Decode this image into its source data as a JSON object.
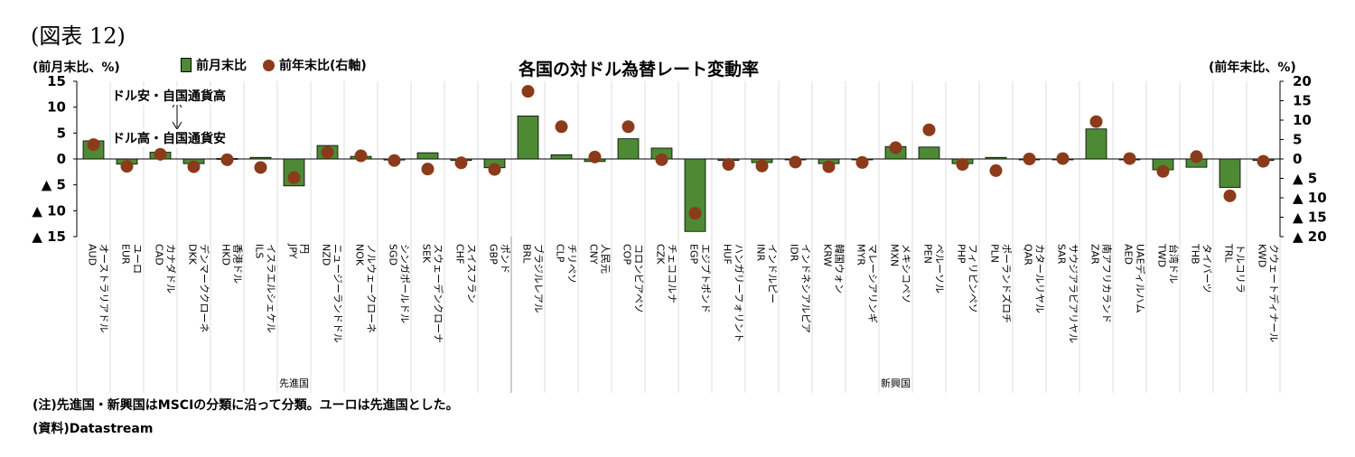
{
  "figure_label": "(図表 12)",
  "chart_data": {
    "type": "bar",
    "title": "各国の対ドル為替レート変動率",
    "ylabel_left": "(前月末比、%)",
    "ylabel_right": "(前年末比、%)",
    "legend_position": "top-left",
    "left_axis": {
      "ylim": [
        -15,
        15
      ],
      "ticks": [
        "15",
        "10",
        "5",
        "0",
        "▲ 5",
        "▲ 10",
        "▲ 15"
      ]
    },
    "right_axis": {
      "ylim": [
        -20,
        20
      ],
      "ticks": [
        "20",
        "15",
        "10",
        "5",
        "0",
        "▲ 5",
        "▲ 10",
        "▲ 15",
        "▲ 20"
      ]
    },
    "grid": false,
    "categories": [
      {
        "code": "AUD",
        "name": "オーストラリアドル"
      },
      {
        "code": "EUR",
        "name": "ユーロ"
      },
      {
        "code": "CAD",
        "name": "カナダドル"
      },
      {
        "code": "DKK",
        "name": "デンマーククローネ"
      },
      {
        "code": "HKD",
        "name": "香港ドル"
      },
      {
        "code": "ILS",
        "name": "イスラエルシェケル"
      },
      {
        "code": "JPY",
        "name": "円"
      },
      {
        "code": "NZD",
        "name": "ニュージーランドドル"
      },
      {
        "code": "NOK",
        "name": "ノルウェークローネ"
      },
      {
        "code": "SGD",
        "name": "シンガポールドル"
      },
      {
        "code": "SEK",
        "name": "スウェーデンクローナ"
      },
      {
        "code": "CHF",
        "name": "スイスフラン"
      },
      {
        "code": "GBP",
        "name": "ポンド"
      },
      {
        "code": "BRL",
        "name": "ブラジルレアル"
      },
      {
        "code": "CLP",
        "name": "チリペソ"
      },
      {
        "code": "CNY",
        "name": "人民元"
      },
      {
        "code": "COP",
        "name": "コロンビアペソ"
      },
      {
        "code": "CZK",
        "name": "チェココルナ"
      },
      {
        "code": "EGP",
        "name": "エジプトポンド"
      },
      {
        "code": "HUF",
        "name": "ハンガリーフォリント"
      },
      {
        "code": "INR",
        "name": "インドルピー"
      },
      {
        "code": "IDR",
        "name": "インドネシアルピア"
      },
      {
        "code": "KRW",
        "name": "韓国ウォン"
      },
      {
        "code": "MYR",
        "name": "マレーシアリンギ"
      },
      {
        "code": "MXN",
        "name": "メキシコペソ"
      },
      {
        "code": "PEN",
        "name": "ペルーソル"
      },
      {
        "code": "PHP",
        "name": "フィリピンペソ"
      },
      {
        "code": "PLN",
        "name": "ポーランドズロチ"
      },
      {
        "code": "QAR",
        "name": "カタールリヤル"
      },
      {
        "code": "SAR",
        "name": "サウジアラビアリヤル"
      },
      {
        "code": "ZAR",
        "name": "南アフリカランド"
      },
      {
        "code": "AED",
        "name": "UAEディルハム"
      },
      {
        "code": "TWD",
        "name": "台湾ドル"
      },
      {
        "code": "THB",
        "name": "タイバーツ"
      },
      {
        "code": "TRL",
        "name": "トルコリラ"
      },
      {
        "code": "KWD",
        "name": "クウェートディナール"
      }
    ],
    "groups": [
      {
        "label": "先進国",
        "count": 13
      },
      {
        "label": "新興国",
        "count": 23
      }
    ],
    "series": [
      {
        "name": "前月末比",
        "kind": "bar",
        "axis": "left",
        "color": "#4e8a34",
        "values": [
          3.5,
          -1.0,
          1.3,
          -0.9,
          0.1,
          0.3,
          -5.2,
          2.6,
          0.5,
          -0.2,
          1.2,
          -0.3,
          -1.7,
          8.3,
          0.8,
          -0.5,
          3.9,
          2.1,
          -14.0,
          -0.3,
          -0.7,
          0.0,
          -0.9,
          -0.1,
          2.4,
          2.3,
          -0.9,
          0.3,
          -0.1,
          0.0,
          5.8,
          0.0,
          -2.1,
          -1.6,
          -5.5,
          -0.3
        ]
      },
      {
        "name": "前年末比(右軸)",
        "kind": "dot",
        "axis": "right",
        "color": "#8b3a1a",
        "values": [
          3.7,
          -1.9,
          1.2,
          -2.0,
          -0.2,
          -2.2,
          -4.8,
          1.7,
          0.8,
          -0.4,
          -2.6,
          -1.0,
          -2.7,
          17.4,
          8.3,
          0.5,
          8.3,
          -0.2,
          -14.0,
          -1.4,
          -1.8,
          -0.8,
          -2.0,
          -0.9,
          2.9,
          7.5,
          -1.4,
          -3.0,
          0.0,
          0.1,
          9.6,
          0.1,
          -3.2,
          0.6,
          -9.5,
          -0.6
        ]
      }
    ],
    "annotations": {
      "up": "ドル安・自国通貨高",
      "down": "ドル高・自国通貨安"
    }
  },
  "note": "(注)先進国・新興国はMSCIの分類に沿って分類。ユーロは先進国とした。",
  "source": "(資料)Datastream"
}
